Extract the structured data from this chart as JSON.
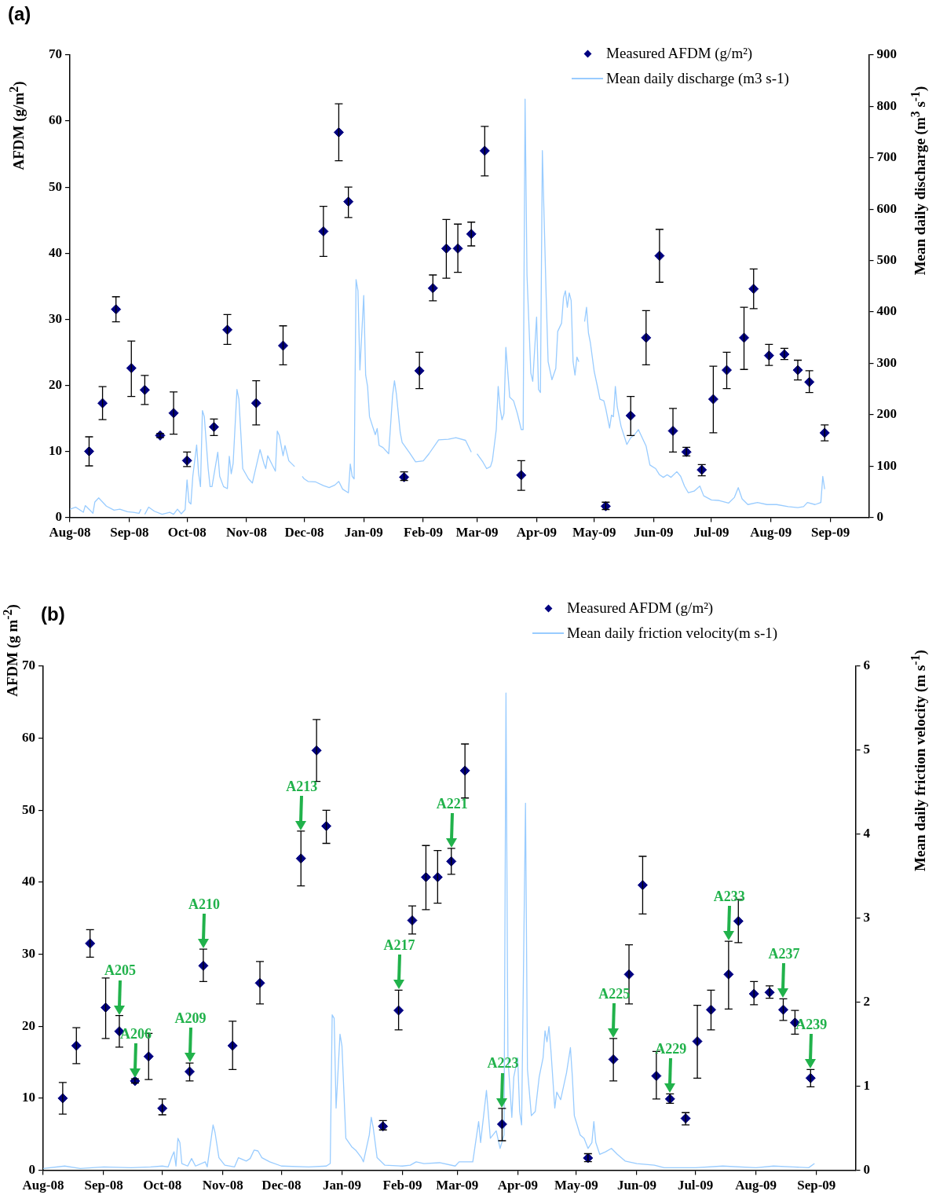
{
  "chart_data": [
    {
      "type": "scatter",
      "title": "(a)",
      "ylabel": "AFDM (g/m$^{2}$)",
      "y2label": "Mean daily discharge (m$^{3}$ s$^{-1}$)",
      "legend": "top right",
      "grid": false,
      "xlim": [
        "2008-08-01",
        "2009-09-21"
      ],
      "xticks": [
        {
          "value": "2008-08-01",
          "label": "Aug-08"
        },
        {
          "value": "2008-09-01",
          "label": "Sep-08"
        },
        {
          "value": "2008-10-01",
          "label": "Oct-08"
        },
        {
          "value": "2008-11-01",
          "label": "Nov-08"
        },
        {
          "value": "2008-12-01",
          "label": "Dec-08"
        },
        {
          "value": "2009-01-01",
          "label": "Jan-09"
        },
        {
          "value": "2009-02-01",
          "label": "Feb-09"
        },
        {
          "value": "2009-03-01",
          "label": "Mar-09"
        },
        {
          "value": "2009-04-01",
          "label": "Apr-09"
        },
        {
          "value": "2009-05-01",
          "label": "May-09"
        },
        {
          "value": "2009-06-01",
          "label": "Jun-09"
        },
        {
          "value": "2009-07-01",
          "label": "Jul-09"
        },
        {
          "value": "2009-08-01",
          "label": "Aug-09"
        },
        {
          "value": "2009-09-01",
          "label": "Sep-09"
        }
      ],
      "ylim": [
        0,
        70
      ],
      "yticks": [
        0,
        10,
        20,
        30,
        40,
        50,
        60,
        70
      ],
      "y2lim": [
        0,
        900
      ],
      "y2ticks": [
        0,
        100,
        200,
        300,
        400,
        500,
        600,
        700,
        800,
        900
      ],
      "series": [
        {
          "name": "Measured AFDM (g/m²)",
          "type": "scatter",
          "marker": "diamond",
          "color": "#000080",
          "x": [
            "2008-08-11",
            "2008-08-18",
            "2008-08-25",
            "2008-09-02",
            "2008-09-09",
            "2008-09-17",
            "2008-09-24",
            "2008-10-01",
            "2008-10-15",
            "2008-10-22",
            "2008-11-06",
            "2008-11-20",
            "2008-12-11",
            "2008-12-19",
            "2008-12-24",
            "2009-01-22",
            "2009-01-30",
            "2009-02-06",
            "2009-02-13",
            "2009-02-19",
            "2009-02-26",
            "2009-03-05",
            "2009-03-24",
            "2009-05-07",
            "2009-05-20",
            "2009-05-28",
            "2009-06-04",
            "2009-06-11",
            "2009-06-18",
            "2009-06-26",
            "2009-07-02",
            "2009-07-09",
            "2009-07-18",
            "2009-07-23",
            "2009-07-31",
            "2009-08-08",
            "2009-08-15",
            "2009-08-21",
            "2009-08-29"
          ],
          "values": [
            10.0,
            17.3,
            31.5,
            22.6,
            19.3,
            12.4,
            15.8,
            8.6,
            13.7,
            28.4,
            17.3,
            26.0,
            43.3,
            58.3,
            47.8,
            6.1,
            22.2,
            34.7,
            40.7,
            40.7,
            42.9,
            55.5,
            6.4,
            1.7,
            15.4,
            27.2,
            39.6,
            13.1,
            9.9,
            7.2,
            17.9,
            22.3,
            27.2,
            34.6,
            24.5,
            24.7,
            22.3,
            20.5,
            12.8
          ],
          "errors": [
            [
              7.8,
              12.2
            ],
            [
              14.8,
              19.8
            ],
            [
              29.6,
              33.4
            ],
            [
              18.3,
              26.7
            ],
            [
              17.1,
              21.5
            ],
            [
              12.1,
              12.7
            ],
            [
              12.6,
              19.0
            ],
            [
              7.7,
              9.9
            ],
            [
              12.4,
              14.9
            ],
            [
              26.2,
              30.7
            ],
            [
              14.0,
              20.7
            ],
            [
              23.1,
              29.0
            ],
            [
              39.5,
              47.1
            ],
            [
              54.0,
              62.6
            ],
            [
              45.4,
              50.0
            ],
            [
              5.6,
              6.9
            ],
            [
              19.5,
              25.0
            ],
            [
              32.8,
              36.7
            ],
            [
              36.2,
              45.1
            ],
            [
              37.1,
              44.4
            ],
            [
              41.1,
              44.7
            ],
            [
              51.7,
              59.2
            ],
            [
              4.1,
              8.6
            ],
            [
              1.2,
              2.3
            ],
            [
              12.4,
              18.3
            ],
            [
              23.1,
              31.3
            ],
            [
              35.6,
              43.6
            ],
            [
              9.9,
              16.5
            ],
            [
              9.3,
              10.6
            ],
            [
              6.3,
              8.0
            ],
            [
              12.8,
              22.9
            ],
            [
              19.5,
              25.0
            ],
            [
              22.4,
              31.8
            ],
            [
              31.6,
              37.6
            ],
            [
              23.0,
              26.2
            ],
            [
              23.9,
              25.6
            ],
            [
              20.8,
              23.8
            ],
            [
              18.9,
              22.2
            ],
            [
              11.6,
              14.0
            ]
          ]
        },
        {
          "name": "Mean daily discharge (m3 s-1)",
          "type": "line",
          "axis": "y2",
          "color": "#99ccff",
          "x": [
            "2008-08-01",
            "2008-08-04",
            "2008-08-08",
            "2008-08-09",
            "2008-08-12",
            "2008-08-13",
            "2008-08-14",
            "2008-08-16",
            "2008-08-20",
            "2008-08-24",
            "2008-08-27",
            "2008-08-31",
            "2008-09-03",
            "2008-09-06",
            "2008-09-07",
            "2008-09-08",
            "2008-09-09",
            "2008-09-11",
            "2008-09-14",
            "2008-09-18",
            "2008-09-22",
            "2008-09-24",
            "2008-09-26",
            "2008-09-28",
            "2008-09-30",
            "2008-10-01",
            "2008-10-02",
            "2008-10-03",
            "2008-10-04",
            "2008-10-06",
            "2008-10-07",
            "2008-10-08",
            "2008-10-09",
            "2008-10-10",
            "2008-10-12",
            "2008-10-13",
            "2008-10-14",
            "2008-10-17",
            "2008-10-18",
            "2008-10-20",
            "2008-10-22",
            "2008-10-23",
            "2008-10-24",
            "2008-10-25",
            "2008-10-27",
            "2008-10-28",
            "2008-10-29",
            "2008-10-30",
            "2008-11-02",
            "2008-11-04",
            "2008-11-08",
            "2008-11-10",
            "2008-11-11",
            "2008-11-12",
            "2008-11-14",
            "2008-11-16",
            "2008-11-17",
            "2008-11-18",
            "2008-11-20",
            "2008-11-21",
            "2008-11-23",
            "2008-11-26",
            "2008-11-28",
            "2008-11-30",
            "2008-12-01",
            "2008-12-03",
            "2008-12-07",
            "2008-12-11",
            "2008-12-14",
            "2008-12-17",
            "2008-12-19",
            "2008-12-21",
            "2008-12-24",
            "2008-12-25",
            "2008-12-26",
            "2008-12-27",
            "2008-12-28",
            "2008-12-29",
            "2008-12-30",
            "2009-01-01",
            "2009-01-02",
            "2009-01-03",
            "2009-01-04",
            "2009-01-07",
            "2009-01-08",
            "2009-01-09",
            "2009-01-11",
            "2009-01-14",
            "2009-01-16",
            "2009-01-17",
            "2009-01-18",
            "2009-01-20",
            "2009-01-21",
            "2009-01-25",
            "2009-01-28",
            "2009-02-01",
            "2009-02-04",
            "2009-02-09",
            "2009-02-14",
            "2009-02-18",
            "2009-02-23",
            "2009-02-26",
            "2009-02-27",
            "2009-03-01",
            "2009-03-04",
            "2009-03-06",
            "2009-03-08",
            "2009-03-09",
            "2009-03-11",
            "2009-03-12",
            "2009-03-13",
            "2009-03-14",
            "2009-03-15",
            "2009-03-16",
            "2009-03-18",
            "2009-03-20",
            "2009-03-22",
            "2009-03-24",
            "2009-03-25",
            "2009-03-26",
            "2009-03-27",
            "2009-03-29",
            "2009-03-30",
            "2009-04-01",
            "2009-04-02",
            "2009-04-03",
            "2009-04-04",
            "2009-04-06",
            "2009-04-07",
            "2009-04-09",
            "2009-04-11",
            "2009-04-12",
            "2009-04-14",
            "2009-04-15",
            "2009-04-16",
            "2009-04-17",
            "2009-04-18",
            "2009-04-19",
            "2009-04-20",
            "2009-04-21",
            "2009-04-22",
            "2009-04-23",
            "2009-04-24",
            "2009-04-26",
            "2009-04-27",
            "2009-04-28",
            "2009-04-29",
            "2009-05-01",
            "2009-05-03",
            "2009-05-04",
            "2009-05-06",
            "2009-05-07",
            "2009-05-08",
            "2009-05-09",
            "2009-05-10",
            "2009-05-11",
            "2009-05-12",
            "2009-05-13",
            "2009-05-15",
            "2009-05-18",
            "2009-05-20",
            "2009-05-22",
            "2009-05-24",
            "2009-05-26",
            "2009-05-28",
            "2009-05-30",
            "2009-06-02",
            "2009-06-04",
            "2009-06-06",
            "2009-06-08",
            "2009-06-10",
            "2009-06-13",
            "2009-06-15",
            "2009-06-17",
            "2009-06-19",
            "2009-06-22",
            "2009-06-25",
            "2009-06-27",
            "2009-07-01",
            "2009-07-05",
            "2009-07-10",
            "2009-07-13",
            "2009-07-15",
            "2009-07-17",
            "2009-07-20",
            "2009-07-25",
            "2009-07-30",
            "2009-08-04",
            "2009-08-10",
            "2009-08-15",
            "2009-08-18",
            "2009-08-20",
            "2009-08-24",
            "2009-08-27",
            "2009-08-28",
            "2009-08-29"
          ],
          "values": [
            16,
            20,
            10,
            23,
            12,
            8,
            30,
            38,
            22,
            14,
            16,
            11,
            10,
            8,
            16,
            null,
            6,
            20,
            12,
            6,
            10,
            6,
            16,
            7,
            15,
            73,
            30,
            26,
            80,
            141,
            86,
            60,
            208,
            196,
            95,
            60,
            60,
            127,
            80,
            60,
            56,
            119,
            85,
            105,
            249,
            230,
            164,
            95,
            75,
            67,
            132,
            105,
            95,
            120,
            105,
            90,
            168,
            160,
            120,
            140,
            110,
            99,
            null,
            80,
            75,
            70,
            69,
            62,
            58,
            63,
            70,
            55,
            48,
            104,
            80,
            75,
            463,
            441,
            287,
            432,
            277,
            255,
            196,
            161,
            173,
            140,
            136,
            124,
            237,
            266,
            240,
            165,
            146,
            125,
            108,
            110,
            124,
            151,
            152,
            155,
            150,
            127,
            null,
            124,
            108,
            95,
            99,
            111,
            171,
            255,
            212,
            190,
            202,
            331,
            234,
            227,
            202,
            171,
            171,
            814,
            472,
            281,
            265,
            390,
            249,
            243,
            714,
            428,
            303,
            268,
            290,
            362,
            378,
            428,
            441,
            409,
            437,
            422,
            303,
            277,
            312,
            303,
            null,
            381,
            409,
            359,
            340,
            284,
            249,
            230,
            227,
            212,
            193,
            174,
            199,
            196,
            255,
            215,
            177,
            142,
            155,
            161,
            171,
            155,
            139,
            102,
            95,
            83,
            78,
            83,
            78,
            89,
            80,
            61,
            48,
            51,
            61,
            42,
            34,
            33,
            28,
            39,
            58,
            36,
            25,
            29,
            25,
            25,
            21,
            19,
            21,
            29,
            25,
            29,
            80,
            55
          ]
        }
      ]
    },
    {
      "type": "scatter",
      "title": "(b)",
      "ylabel": "AFDM (g m$^{-2}$)",
      "y2label": "Mean daily friction velocity (m s$^{-1}$)",
      "legend": "top right",
      "grid": false,
      "xlim": [
        "2008-08-01",
        "2009-09-21"
      ],
      "xticks": [
        {
          "value": "2008-08-01",
          "label": "Aug-08"
        },
        {
          "value": "2008-09-01",
          "label": "Sep-08"
        },
        {
          "value": "2008-10-01",
          "label": "Oct-08"
        },
        {
          "value": "2008-11-01",
          "label": "Nov-08"
        },
        {
          "value": "2008-12-01",
          "label": "Dec-08"
        },
        {
          "value": "2009-01-01",
          "label": "Jan-09"
        },
        {
          "value": "2009-02-01",
          "label": "Feb-09"
        },
        {
          "value": "2009-03-01",
          "label": "Mar-09"
        },
        {
          "value": "2009-04-01",
          "label": "Apr-09"
        },
        {
          "value": "2009-05-01",
          "label": "May-09"
        },
        {
          "value": "2009-06-01",
          "label": "Jun-09"
        },
        {
          "value": "2009-07-01",
          "label": "Jul-09"
        },
        {
          "value": "2009-08-01",
          "label": "Aug-09"
        },
        {
          "value": "2009-09-01",
          "label": "Sep-09"
        }
      ],
      "ylim": [
        0,
        70
      ],
      "yticks": [
        0,
        10,
        20,
        30,
        40,
        50,
        60,
        70
      ],
      "y2lim": [
        0,
        6
      ],
      "y2ticks": [
        0,
        1,
        2,
        3,
        4,
        5,
        6
      ],
      "annotations": [
        {
          "text": "A205",
          "x": "2008-09-09",
          "y": 21.5
        },
        {
          "text": "A206",
          "x": "2008-09-17",
          "y": 12.7
        },
        {
          "text": "A209",
          "x": "2008-10-15",
          "y": 14.9
        },
        {
          "text": "A210",
          "x": "2008-10-22",
          "y": 30.7
        },
        {
          "text": "A213",
          "x": "2008-12-11",
          "y": 47.1
        },
        {
          "text": "A217",
          "x": "2009-01-30",
          "y": 25.0
        },
        {
          "text": "A221",
          "x": "2009-02-26",
          "y": 44.7
        },
        {
          "text": "A223",
          "x": "2009-03-24",
          "y": 8.6
        },
        {
          "text": "A225",
          "x": "2009-05-20",
          "y": 18.3
        },
        {
          "text": "A229",
          "x": "2009-06-18",
          "y": 10.6
        },
        {
          "text": "A233",
          "x": "2009-07-18",
          "y": 31.8
        },
        {
          "text": "A237",
          "x": "2009-08-15",
          "y": 23.8
        },
        {
          "text": "A239",
          "x": "2009-08-29",
          "y": 14.0
        }
      ],
      "series": [
        {
          "name": "Measured AFDM (g/m²)",
          "type": "scatter",
          "marker": "diamond",
          "color": "#000080",
          "x": [
            "2008-08-11",
            "2008-08-18",
            "2008-08-25",
            "2008-09-02",
            "2008-09-09",
            "2008-09-17",
            "2008-09-24",
            "2008-10-01",
            "2008-10-15",
            "2008-10-22",
            "2008-11-06",
            "2008-11-20",
            "2008-12-11",
            "2008-12-19",
            "2008-12-24",
            "2009-01-22",
            "2009-01-30",
            "2009-02-06",
            "2009-02-13",
            "2009-02-19",
            "2009-02-26",
            "2009-03-05",
            "2009-03-24",
            "2009-05-07",
            "2009-05-20",
            "2009-05-28",
            "2009-06-04",
            "2009-06-11",
            "2009-06-18",
            "2009-06-26",
            "2009-07-02",
            "2009-07-09",
            "2009-07-18",
            "2009-07-23",
            "2009-07-31",
            "2009-08-08",
            "2009-08-15",
            "2009-08-21",
            "2009-08-29"
          ],
          "values": [
            10.0,
            17.3,
            31.5,
            22.6,
            19.3,
            12.4,
            15.8,
            8.6,
            13.7,
            28.4,
            17.3,
            26.0,
            43.3,
            58.3,
            47.8,
            6.1,
            22.2,
            34.7,
            40.7,
            40.7,
            42.9,
            55.5,
            6.4,
            1.7,
            15.4,
            27.2,
            39.6,
            13.1,
            9.9,
            7.2,
            17.9,
            22.3,
            27.2,
            34.6,
            24.5,
            24.7,
            22.3,
            20.5,
            12.8
          ],
          "errors": [
            [
              7.8,
              12.2
            ],
            [
              14.8,
              19.8
            ],
            [
              29.6,
              33.4
            ],
            [
              18.3,
              26.7
            ],
            [
              17.1,
              21.5
            ],
            [
              12.1,
              12.7
            ],
            [
              12.6,
              19.0
            ],
            [
              7.7,
              9.9
            ],
            [
              12.4,
              14.9
            ],
            [
              26.2,
              30.7
            ],
            [
              14.0,
              20.7
            ],
            [
              23.1,
              29.0
            ],
            [
              39.5,
              47.1
            ],
            [
              54.0,
              62.6
            ],
            [
              45.4,
              50.0
            ],
            [
              5.6,
              6.9
            ],
            [
              19.5,
              25.0
            ],
            [
              32.8,
              36.7
            ],
            [
              36.2,
              45.1
            ],
            [
              37.1,
              44.4
            ],
            [
              41.1,
              44.7
            ],
            [
              51.7,
              59.2
            ],
            [
              4.1,
              8.6
            ],
            [
              1.2,
              2.3
            ],
            [
              12.4,
              18.3
            ],
            [
              23.1,
              31.3
            ],
            [
              35.6,
              43.6
            ],
            [
              9.9,
              16.5
            ],
            [
              9.3,
              10.6
            ],
            [
              6.3,
              8.0
            ],
            [
              12.8,
              22.9
            ],
            [
              19.5,
              25.0
            ],
            [
              22.4,
              31.8
            ],
            [
              31.6,
              37.6
            ],
            [
              23.0,
              26.2
            ],
            [
              23.9,
              25.6
            ],
            [
              20.8,
              23.8
            ],
            [
              18.9,
              22.2
            ],
            [
              11.6,
              14.0
            ]
          ]
        },
        {
          "name": "Mean daily friction velocity(m s-1)",
          "type": "line",
          "axis": "y2",
          "color": "#99ccff",
          "x": [
            "2008-08-01",
            "2008-08-12",
            "2008-08-20",
            "2008-09-01",
            "2008-09-15",
            "2008-09-25",
            "2008-10-01",
            "2008-10-04",
            "2008-10-06",
            "2008-10-07",
            "2008-10-08",
            "2008-10-09",
            "2008-10-10",
            "2008-10-11",
            "2008-10-14",
            "2008-10-16",
            "2008-10-18",
            "2008-10-23",
            "2008-10-24",
            "2008-10-27",
            "2008-10-28",
            "2008-10-30",
            "2008-11-02",
            "2008-11-07",
            "2008-11-09",
            "2008-11-13",
            "2008-11-15",
            "2008-11-17",
            "2008-11-19",
            "2008-11-21",
            "2008-11-25",
            "2008-12-01",
            "2008-12-15",
            "2008-12-24",
            "2008-12-26",
            "2008-12-27",
            "2008-12-28",
            "2008-12-29",
            "2008-12-31",
            "2009-01-01",
            "2009-01-03",
            "2009-01-06",
            "2009-01-08",
            "2009-01-11",
            "2009-01-12",
            "2009-01-15",
            "2009-01-16",
            "2009-01-17",
            "2009-01-19",
            "2009-01-23",
            "2009-02-01",
            "2009-02-05",
            "2009-02-08",
            "2009-02-12",
            "2009-02-20",
            "2009-02-28",
            "2009-03-02",
            "2009-03-09",
            "2009-03-12",
            "2009-03-13",
            "2009-03-16",
            "2009-03-18",
            "2009-03-21",
            "2009-03-23",
            "2009-03-25",
            "2009-03-26",
            "2009-03-27",
            "2009-03-29",
            "2009-03-30",
            "2009-04-01",
            "2009-04-02",
            "2009-04-03",
            "2009-04-05",
            "2009-04-06",
            "2009-04-08",
            "2009-04-10",
            "2009-04-12",
            "2009-04-14",
            "2009-04-15",
            "2009-04-16",
            "2009-04-17",
            "2009-04-18",
            "2009-04-20",
            "2009-04-21",
            "2009-04-23",
            "2009-04-26",
            "2009-04-28",
            "2009-04-29",
            "2009-04-30",
            "2009-05-03",
            "2009-05-05",
            "2009-05-07",
            "2009-05-09",
            "2009-05-10",
            "2009-05-11",
            "2009-05-13",
            "2009-05-16",
            "2009-05-19",
            "2009-05-22",
            "2009-05-26",
            "2009-06-01",
            "2009-06-10",
            "2009-06-15",
            "2009-07-01",
            "2009-07-15",
            "2009-08-01",
            "2009-08-10",
            "2009-08-20",
            "2009-08-28",
            "2009-08-31"
          ],
          "values": [
            0.02,
            0.05,
            0.02,
            0.04,
            0.03,
            0.04,
            0.05,
            0.04,
            0.17,
            0.22,
            0.05,
            0.38,
            0.33,
            0.08,
            0.05,
            0.14,
            0.05,
            0.1,
            0.04,
            0.54,
            0.45,
            0.15,
            0.06,
            0.04,
            0.15,
            0.11,
            0.14,
            0.24,
            0.23,
            0.15,
            0.1,
            0.05,
            0.04,
            0.05,
            0.08,
            1.85,
            1.81,
            0.74,
            1.62,
            1.48,
            0.38,
            0.28,
            0.24,
            0.15,
            0.1,
            0.42,
            0.63,
            0.51,
            0.15,
            0.06,
            0.05,
            0.06,
            0.1,
            0.08,
            0.09,
            0.05,
            0.1,
            0.1,
            0.58,
            0.33,
            0.95,
            0.38,
            0.47,
            0.26,
            0.42,
            5.68,
            1.34,
            0.63,
            1.11,
            1.34,
            0.7,
            0.54,
            4.37,
            1.2,
            0.65,
            0.7,
            1.11,
            1.34,
            1.66,
            1.53,
            1.71,
            1.43,
            0.74,
            0.93,
            0.84,
            1.16,
            1.46,
            1.11,
            0.65,
            0.42,
            0.38,
            0.26,
            0.33,
            0.58,
            0.33,
            0.19,
            0.22,
            0.26,
            0.19,
            0.11,
            0.08,
            0.06,
            0.03,
            0.03,
            0.05,
            0.03,
            0.05,
            0.04,
            0.03,
            0.08
          ]
        }
      ]
    }
  ]
}
